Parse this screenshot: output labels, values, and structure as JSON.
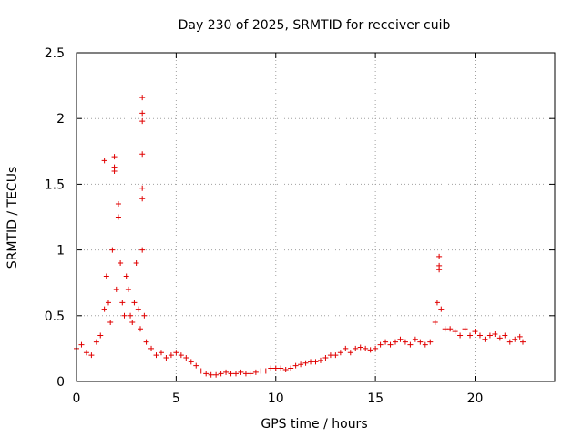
{
  "chart_data": {
    "type": "scatter",
    "title": "Day 230 of 2025, SRMTID for receiver cuib",
    "xlabel": "GPS time / hours",
    "ylabel": "SRMTID / TECUs",
    "xlim": [
      0,
      24
    ],
    "ylim": [
      0,
      2.5
    ],
    "xticks": [
      0,
      5,
      10,
      15,
      20
    ],
    "yticks": [
      0,
      0.5,
      1,
      1.5,
      2,
      2.5
    ],
    "xtick_labels": [
      "0",
      "5",
      "10",
      "15",
      "20"
    ],
    "ytick_labels": [
      "0",
      "0.5",
      "1",
      "1.5",
      "2",
      "2.5"
    ],
    "grid": true,
    "marker": "+",
    "color": "#e00000",
    "series": [
      {
        "name": "SRMTID",
        "x": [
          0.0,
          0.25,
          0.5,
          0.75,
          1.0,
          1.2,
          1.4,
          1.5,
          1.6,
          1.7,
          1.8,
          1.9,
          2.0,
          2.1,
          2.2,
          2.3,
          2.4,
          2.5,
          2.6,
          2.7,
          2.8,
          2.9,
          3.0,
          3.1,
          3.2,
          3.3,
          3.4,
          3.5,
          3.75,
          4.0,
          4.25,
          4.5,
          4.75,
          5.0,
          5.25,
          5.5,
          5.75,
          6.0,
          6.25,
          6.5,
          6.75,
          7.0,
          7.25,
          7.5,
          7.75,
          8.0,
          8.25,
          8.5,
          8.75,
          9.0,
          9.25,
          9.5,
          9.75,
          10.0,
          10.25,
          10.5,
          10.75,
          11.0,
          11.25,
          11.5,
          11.75,
          12.0,
          12.25,
          12.5,
          12.75,
          13.0,
          13.25,
          13.5,
          13.75,
          14.0,
          14.25,
          14.5,
          14.75,
          15.0,
          15.25,
          15.5,
          15.75,
          16.0,
          16.25,
          16.5,
          16.75,
          17.0,
          17.25,
          17.5,
          17.75,
          18.0,
          18.1,
          18.2,
          18.3,
          18.5,
          18.75,
          19.0,
          19.25,
          19.5,
          19.75,
          20.0,
          20.25,
          20.5,
          20.75,
          21.0,
          21.25,
          21.5,
          21.75,
          22.0,
          22.25,
          22.4
        ],
        "y": [
          0.25,
          0.28,
          0.22,
          0.2,
          0.3,
          0.35,
          0.55,
          0.8,
          0.6,
          0.45,
          1.0,
          1.6,
          0.7,
          1.25,
          0.9,
          0.6,
          0.5,
          0.8,
          0.7,
          0.5,
          0.45,
          0.6,
          0.9,
          0.55,
          0.4,
          1.0,
          0.5,
          0.3,
          0.25,
          0.2,
          0.22,
          0.18,
          0.2,
          0.22,
          0.2,
          0.18,
          0.15,
          0.12,
          0.08,
          0.06,
          0.05,
          0.05,
          0.06,
          0.07,
          0.06,
          0.06,
          0.07,
          0.06,
          0.06,
          0.07,
          0.08,
          0.08,
          0.1,
          0.1,
          0.1,
          0.09,
          0.1,
          0.12,
          0.13,
          0.14,
          0.15,
          0.15,
          0.16,
          0.18,
          0.2,
          0.2,
          0.22,
          0.25,
          0.22,
          0.25,
          0.26,
          0.25,
          0.24,
          0.25,
          0.28,
          0.3,
          0.28,
          0.3,
          0.32,
          0.3,
          0.28,
          0.32,
          0.3,
          0.28,
          0.3,
          0.45,
          0.6,
          0.85,
          0.55,
          0.4,
          0.4,
          0.38,
          0.35,
          0.4,
          0.35,
          0.38,
          0.35,
          0.32,
          0.35,
          0.36,
          0.33,
          0.35,
          0.3,
          0.32,
          0.34,
          0.3
        ],
        "outliers": [
          {
            "x": 3.3,
            "y": 2.16
          },
          {
            "x": 3.3,
            "y": 2.04
          },
          {
            "x": 3.3,
            "y": 1.98
          },
          {
            "x": 3.3,
            "y": 1.73
          },
          {
            "x": 3.3,
            "y": 1.47
          },
          {
            "x": 3.3,
            "y": 1.39
          },
          {
            "x": 1.4,
            "y": 1.68
          },
          {
            "x": 1.9,
            "y": 1.71
          },
          {
            "x": 1.9,
            "y": 1.63
          },
          {
            "x": 2.1,
            "y": 1.35
          },
          {
            "x": 18.2,
            "y": 0.95
          },
          {
            "x": 18.2,
            "y": 0.88
          }
        ]
      }
    ]
  }
}
